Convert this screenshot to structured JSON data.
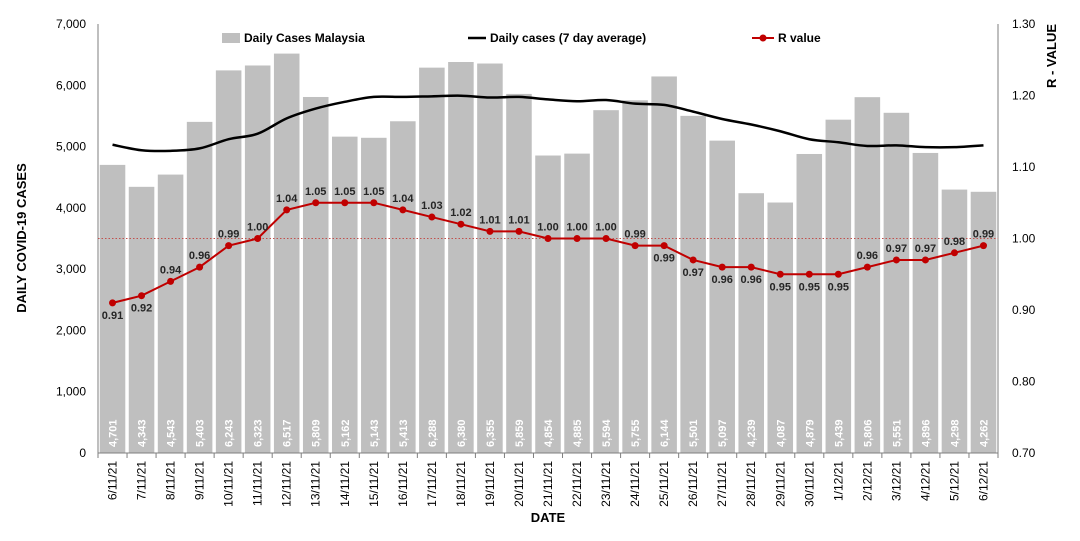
{
  "chart_data": {
    "type": "bar",
    "title": "",
    "xlabel": "DATE",
    "ylabel": "DAILY COVID-19 CASES",
    "y2label": "R - VALUE",
    "ylim": [
      0,
      7000
    ],
    "y2lim": [
      0.7,
      1.3
    ],
    "yticks": [
      "0",
      "1,000",
      "2,000",
      "3,000",
      "4,000",
      "5,000",
      "6,000",
      "7,000"
    ],
    "y2ticks": [
      "0.70",
      "0.80",
      "0.90",
      "1.00",
      "1.10",
      "1.20",
      "1.30"
    ],
    "legend_position": "top",
    "grid": false,
    "reference_line": {
      "axis": "y2",
      "value": 1.0,
      "style": "dotted",
      "color": "#c0504d"
    },
    "categories": [
      "6/11/21",
      "7/11/21",
      "8/11/21",
      "9/11/21",
      "10/11/21",
      "11/11/21",
      "12/11/21",
      "13/11/21",
      "14/11/21",
      "15/11/21",
      "16/11/21",
      "17/11/21",
      "18/11/21",
      "19/11/21",
      "20/11/21",
      "21/11/21",
      "22/11/21",
      "23/11/21",
      "24/11/21",
      "25/11/21",
      "26/11/21",
      "27/11/21",
      "28/11/21",
      "29/11/21",
      "30/11/21",
      "1/12/21",
      "2/12/21",
      "3/12/21",
      "4/12/21",
      "5/12/21",
      "6/12/21"
    ],
    "series": [
      {
        "name": "Daily Cases Malaysia",
        "kind": "bar",
        "axis": "y",
        "color": "#bfbfbf",
        "values": [
          4701,
          4343,
          4543,
          5403,
          6243,
          6323,
          6517,
          5809,
          5162,
          5143,
          5413,
          6288,
          6380,
          6355,
          5859,
          4854,
          4885,
          5594,
          5755,
          6144,
          5501,
          5097,
          4239,
          4087,
          4879,
          5439,
          5806,
          5551,
          4896,
          4298,
          4262
        ],
        "labels": [
          "4,701",
          "4,343",
          "4,543",
          "5,403",
          "6,243",
          "6,323",
          "6,517",
          "5,809",
          "5,162",
          "5,143",
          "5,413",
          "6,288",
          "6,380",
          "6,355",
          "5,859",
          "4,854",
          "4,885",
          "5,594",
          "5,755",
          "6,144",
          "5,501",
          "5,097",
          "4,239",
          "4,087",
          "4,879",
          "5,439",
          "5,806",
          "5,551",
          "4,896",
          "4,298",
          "4,262"
        ]
      },
      {
        "name": "Daily cases (7 day average)",
        "kind": "line",
        "axis": "y",
        "color": "#000000",
        "values": [
          5030,
          4940,
          4930,
          4970,
          5120,
          5210,
          5460,
          5620,
          5730,
          5810,
          5810,
          5820,
          5830,
          5800,
          5810,
          5770,
          5740,
          5760,
          5700,
          5680,
          5570,
          5450,
          5360,
          5250,
          5120,
          5070,
          5010,
          5020,
          4990,
          4990,
          5020
        ]
      },
      {
        "name": "R value",
        "kind": "line",
        "axis": "y2",
        "color": "#c00000",
        "values": [
          0.91,
          0.92,
          0.94,
          0.96,
          0.99,
          1.0,
          1.04,
          1.05,
          1.05,
          1.05,
          1.04,
          1.03,
          1.02,
          1.01,
          1.01,
          1.0,
          1.0,
          1.0,
          0.99,
          0.99,
          0.97,
          0.96,
          0.96,
          0.95,
          0.95,
          0.95,
          0.96,
          0.97,
          0.97,
          0.98,
          0.99
        ],
        "labels": [
          "0.91",
          "0.92",
          "0.94",
          "0.96",
          "0.99",
          "1.00",
          "1.04",
          "1.05",
          "1.05",
          "1.05",
          "1.04",
          "1.03",
          "1.02",
          "1.01",
          "1.01",
          "1.00",
          "1.00",
          "1.00",
          "0.99",
          "0.99",
          "0.97",
          "0.96",
          "0.96",
          "0.95",
          "0.95",
          "0.95",
          "0.96",
          "0.97",
          "0.97",
          "0.98",
          "0.99"
        ]
      }
    ]
  }
}
